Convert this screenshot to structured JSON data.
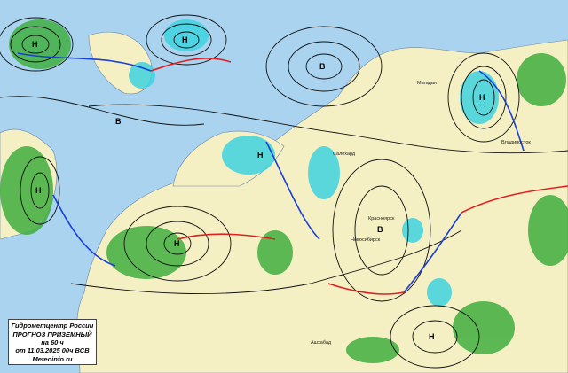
{
  "legend": {
    "organization": "Гидрометцентр России",
    "title": "ПРОГНОЗ ПРИЗЕМНЫЙ",
    "lead": "на 60 ч",
    "issued": "от 11.03.2025 00ч ВСВ",
    "site": "Meteoinfo.ru"
  },
  "pressure_centers": {
    "low": "Н",
    "high": "В"
  },
  "cities": [
    "Магадан",
    "Красноярск",
    "Новосибирск",
    "Ашхабад",
    "Владивосток",
    "Салехард"
  ],
  "colors": {
    "sea": "#a9d3ee",
    "land": "#f5efc4",
    "precip": "#3fae3f",
    "snow": "#3fd3e0",
    "isobar": "#111111",
    "cold_front": "#1a3fd6",
    "warm_front": "#e02020"
  }
}
